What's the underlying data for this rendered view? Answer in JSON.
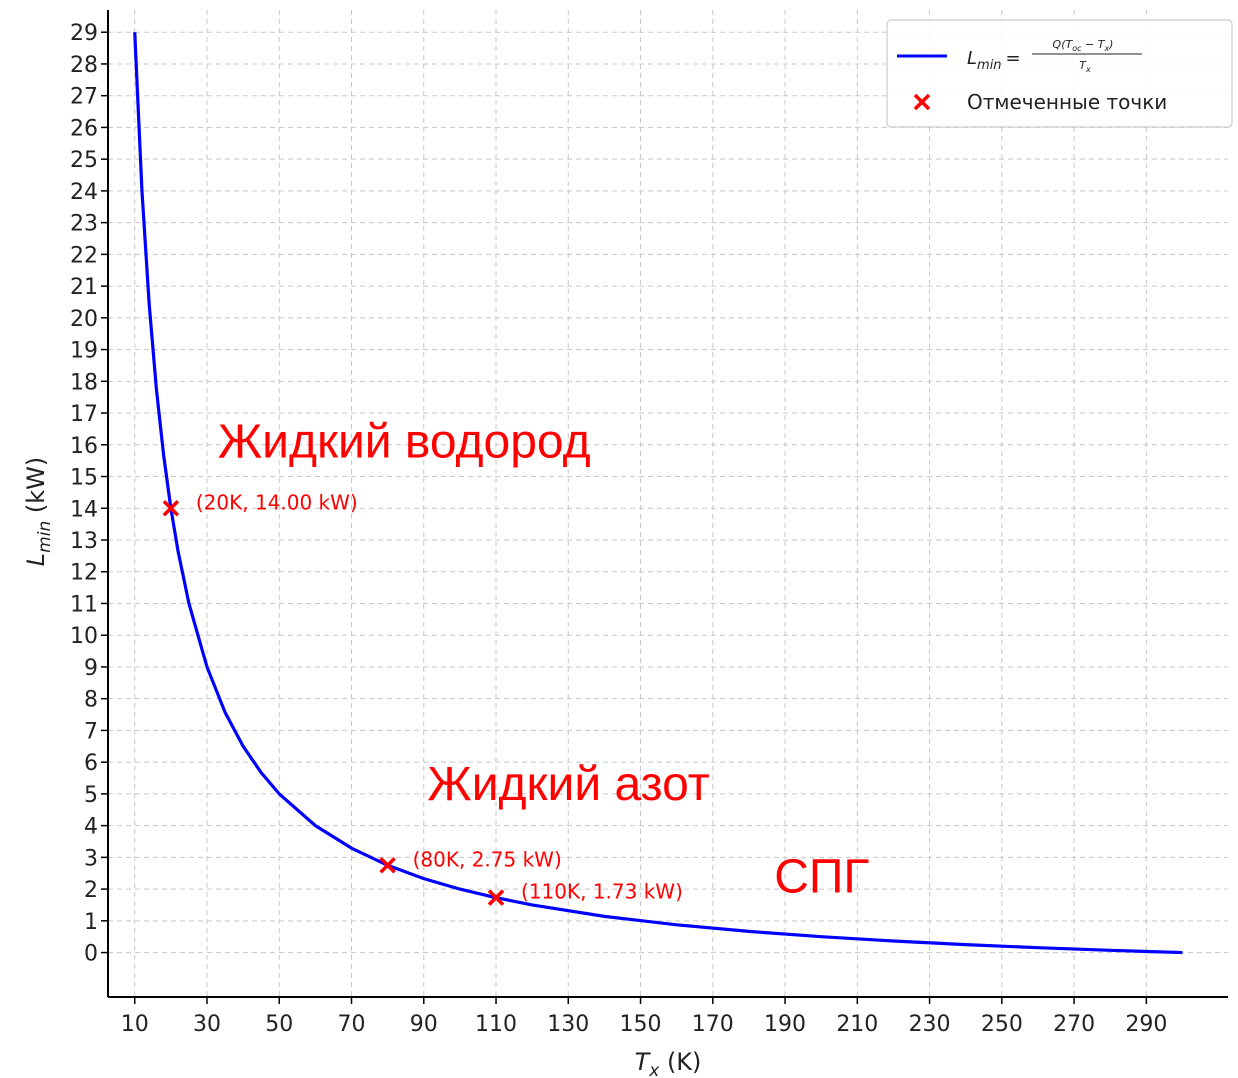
{
  "chart_data": {
    "type": "line",
    "title": "",
    "xlabel": {
      "main": "T",
      "sub": "x",
      "unit": " (K)"
    },
    "ylabel": {
      "main": "L",
      "sub": "min",
      "unit": " (kW)"
    },
    "xlim": [
      2.6,
      312.6
    ],
    "ylim": [
      -1.4,
      29.7
    ],
    "xticks": [
      10,
      30,
      50,
      70,
      90,
      110,
      130,
      150,
      170,
      190,
      210,
      230,
      250,
      270,
      290
    ],
    "yticks": [
      0,
      1,
      2,
      3,
      4,
      5,
      6,
      7,
      8,
      9,
      10,
      11,
      12,
      13,
      14,
      15,
      16,
      17,
      18,
      19,
      20,
      21,
      22,
      23,
      24,
      25,
      26,
      27,
      28,
      29
    ],
    "grid": true,
    "series": [
      {
        "name": "L_min = Q(T_oc − T_x) / T_x",
        "legend": {
          "lhs": "L",
          "lhs_sub": "min",
          "eq": "=",
          "numerator": "Q(T",
          "num_sub1": "oc",
          "num_mid": " − T",
          "num_sub2": "x",
          "num_end": ")",
          "denominator": "T",
          "den_sub": "x"
        },
        "color": "#0000ff",
        "x": [
          10,
          12,
          14,
          16,
          18,
          20,
          22,
          25,
          30,
          35,
          40,
          45,
          50,
          60,
          70,
          80,
          90,
          100,
          110,
          120,
          140,
          160,
          180,
          200,
          220,
          240,
          260,
          280,
          300
        ],
        "values": [
          29.0,
          24.0,
          20.43,
          17.75,
          15.67,
          14.0,
          12.64,
          11.0,
          9.0,
          7.57,
          6.5,
          5.67,
          5.0,
          4.0,
          3.29,
          2.75,
          2.33,
          2.0,
          1.73,
          1.5,
          1.14,
          0.875,
          0.667,
          0.5,
          0.364,
          0.25,
          0.154,
          0.071,
          0.0
        ]
      },
      {
        "name": "Отмеченные точки",
        "type": "scatter",
        "color": "#ff0000",
        "x": [
          20,
          80,
          110
        ],
        "values": [
          14.0,
          2.75,
          1.73
        ]
      }
    ],
    "annotations": [
      {
        "text": "(20K, 14.00 kW)",
        "x": 20,
        "y": 14.0
      },
      {
        "text": "(80K, 2.75 kW)",
        "x": 80,
        "y": 2.75
      },
      {
        "text": "(110K, 1.73 kW)",
        "x": 110,
        "y": 1.73
      }
    ],
    "region_labels": [
      {
        "text": "Жидкий водород",
        "x": 33,
        "y": 15.6
      },
      {
        "text": "Жидкий азот",
        "x": 91,
        "y": 4.8
      },
      {
        "text": "СПГ",
        "x": 187,
        "y": 1.9
      }
    ],
    "legend_position": "top-right",
    "colors": {
      "marker": "#ff0000",
      "line": "#0000ff",
      "grid": "#c8c8c8",
      "text": "#222222"
    }
  }
}
